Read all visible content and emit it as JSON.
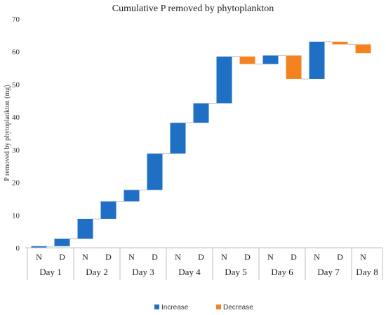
{
  "chart_data": {
    "type": "bar",
    "subtype": "waterfall",
    "title": "Cumulative P removed by phytoplankton",
    "ylabel": "P removed by phytoplankton  (mg)",
    "xlabel": "",
    "ylim": [
      0,
      70
    ],
    "yticks": [
      0,
      10,
      20,
      30,
      40,
      50,
      60,
      70
    ],
    "grid": false,
    "legend_position": "bottom",
    "colors": {
      "increase": "#1F6FC5",
      "decrease": "#F58220",
      "connector": "#BFBFBF",
      "axis": "#BFBFBF"
    },
    "legend": [
      {
        "key": "increase",
        "label": "Increase"
      },
      {
        "key": "decrease",
        "label": "Decrease"
      }
    ],
    "groups": [
      "Day 1",
      "Day 2",
      "Day 3",
      "Day 4",
      "Day 5",
      "Day 6",
      "Day 7",
      "Day 8"
    ],
    "categories": [
      {
        "label": "N",
        "group": "Day 1",
        "start": 0,
        "end": 0.5
      },
      {
        "label": "D",
        "group": "Day 1",
        "start": 0.5,
        "end": 2.8
      },
      {
        "label": "N",
        "group": "Day 2",
        "start": 2.8,
        "end": 8.8
      },
      {
        "label": "D",
        "group": "Day 2",
        "start": 8.8,
        "end": 14.2
      },
      {
        "label": "N",
        "group": "Day 3",
        "start": 14.2,
        "end": 17.7
      },
      {
        "label": "D",
        "group": "Day 3",
        "start": 17.7,
        "end": 28.8
      },
      {
        "label": "N",
        "group": "Day 4",
        "start": 28.8,
        "end": 38.2
      },
      {
        "label": "D",
        "group": "Day 4",
        "start": 38.2,
        "end": 44.2
      },
      {
        "label": "N",
        "group": "Day 5",
        "start": 44.2,
        "end": 58.5
      },
      {
        "label": "D",
        "group": "Day 5",
        "start": 58.5,
        "end": 56.2
      },
      {
        "label": "N",
        "group": "Day 6",
        "start": 56.2,
        "end": 58.8
      },
      {
        "label": "D",
        "group": "Day 6",
        "start": 58.8,
        "end": 51.6
      },
      {
        "label": "N",
        "group": "Day 7",
        "start": 51.6,
        "end": 63.0
      },
      {
        "label": "D",
        "group": "Day 7",
        "start": 63.0,
        "end": 62.2
      },
      {
        "label": "N",
        "group": "Day 8",
        "start": 62.2,
        "end": 59.5
      }
    ]
  }
}
